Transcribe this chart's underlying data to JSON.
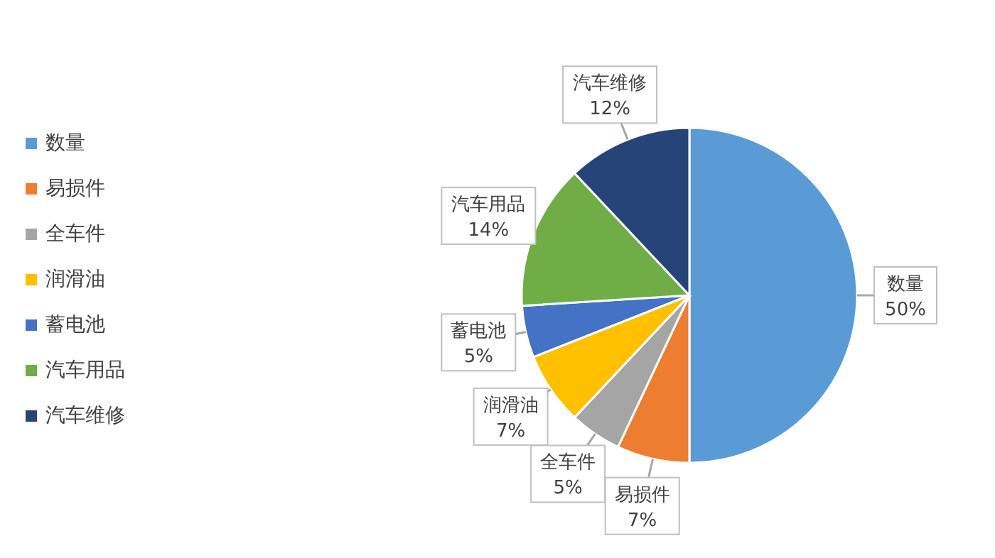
{
  "chart_data": {
    "type": "pie",
    "categories": [
      "数量",
      "易损件",
      "全车件",
      "润滑油",
      "蓄电池",
      "汽车用品",
      "汽车维修"
    ],
    "values": [
      50,
      7,
      5,
      7,
      5,
      14,
      12
    ],
    "colors": [
      "#5b9bd5",
      "#ed7d31",
      "#a5a5a5",
      "#ffc000",
      "#4472c4",
      "#70ad47",
      "#264478"
    ],
    "value_labels": [
      "50%",
      "7%",
      "5%",
      "7%",
      "5%",
      "14%",
      "12%"
    ],
    "legend": "left"
  }
}
